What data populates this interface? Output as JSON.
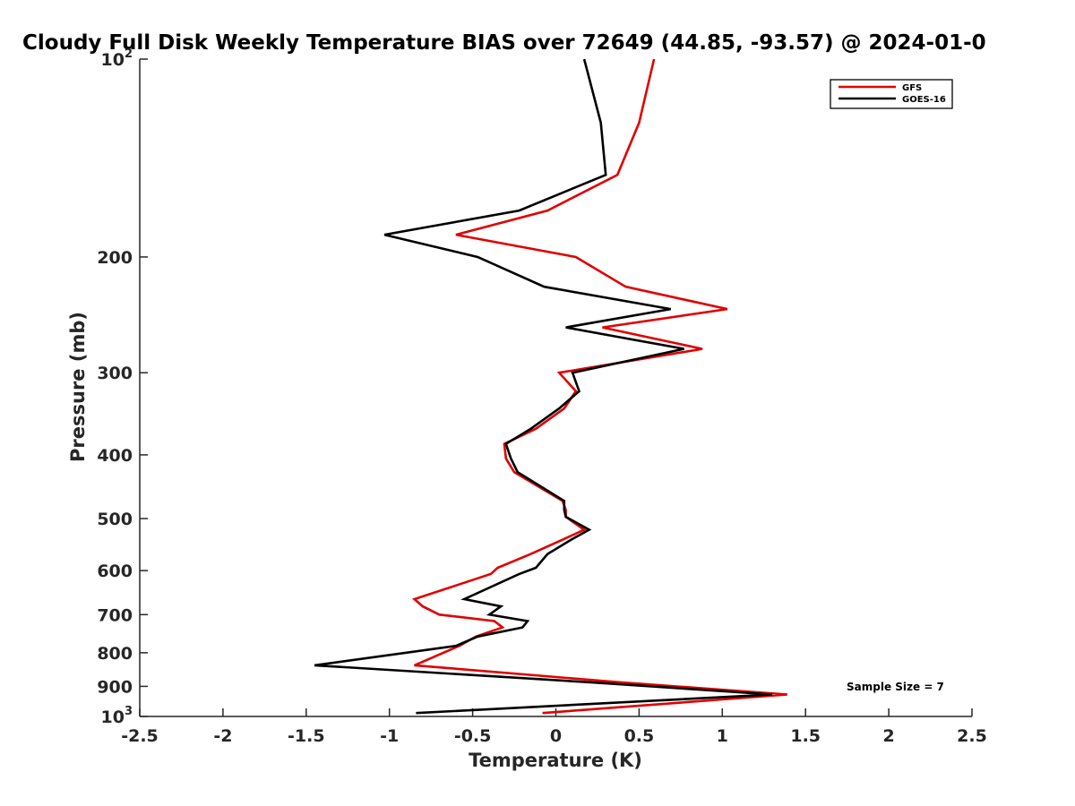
{
  "chart_data": {
    "type": "line",
    "title": "Cloudy Full Disk Weekly Temperature BIAS over 72649 (44.85, -93.57) @ 2024-01-0",
    "xlabel": "Temperature (K)",
    "ylabel": "Pressure (mb)",
    "xlim": [
      -2.5,
      2.5
    ],
    "ylim": [
      100,
      1000
    ],
    "y_scale": "log",
    "y_reversed": true,
    "x_ticks": [
      "-2.5",
      "-2",
      "-1.5",
      "-1",
      "-0.5",
      "0",
      "0.5",
      "1",
      "1.5",
      "2",
      "2.5"
    ],
    "x_tick_values": [
      -2.5,
      -2,
      -1.5,
      -1,
      -0.5,
      0,
      0.5,
      1,
      1.5,
      2,
      2.5
    ],
    "y_tick_values": [
      100,
      200,
      300,
      400,
      500,
      600,
      700,
      800,
      900,
      1000
    ],
    "y_tick_labels": [
      {
        "base": "10",
        "exp": "2"
      },
      {
        "base": "200",
        "exp": ""
      },
      {
        "base": "300",
        "exp": ""
      },
      {
        "base": "400",
        "exp": ""
      },
      {
        "base": "500",
        "exp": ""
      },
      {
        "base": "600",
        "exp": ""
      },
      {
        "base": "700",
        "exp": ""
      },
      {
        "base": "800",
        "exp": ""
      },
      {
        "base": "900",
        "exp": ""
      },
      {
        "base": "10",
        "exp": "3"
      }
    ],
    "grid": false,
    "legend_position": "top-right",
    "annotation": "Sample Size = 7",
    "series": [
      {
        "name": "GFS",
        "color": "#e00000",
        "points": [
          [
            0.59,
            100
          ],
          [
            0.5,
            125
          ],
          [
            0.37,
            150
          ],
          [
            -0.05,
            170
          ],
          [
            -0.6,
            185
          ],
          [
            0.12,
            200
          ],
          [
            0.42,
            222
          ],
          [
            1.03,
            240
          ],
          [
            0.28,
            256
          ],
          [
            0.88,
            276
          ],
          [
            0.02,
            300
          ],
          [
            0.12,
            320
          ],
          [
            0.05,
            340
          ],
          [
            -0.12,
            365
          ],
          [
            -0.31,
            385
          ],
          [
            -0.3,
            405
          ],
          [
            -0.25,
            425
          ],
          [
            0.04,
            470
          ],
          [
            0.06,
            485
          ],
          [
            0.06,
            497
          ],
          [
            0.17,
            520
          ],
          [
            0.05,
            537
          ],
          [
            -0.15,
            566
          ],
          [
            -0.35,
            594
          ],
          [
            -0.39,
            607
          ],
          [
            -0.85,
            663
          ],
          [
            -0.8,
            680
          ],
          [
            -0.7,
            700
          ],
          [
            -0.37,
            716
          ],
          [
            -0.32,
            732
          ],
          [
            -0.48,
            756
          ],
          [
            -0.58,
            781
          ],
          [
            -0.85,
            836
          ],
          [
            0.38,
            887
          ],
          [
            1.39,
            926
          ],
          [
            -0.08,
            988
          ]
        ]
      },
      {
        "name": "GOES-16",
        "color": "#000000",
        "points": [
          [
            0.17,
            100
          ],
          [
            0.27,
            125
          ],
          [
            0.3,
            150
          ],
          [
            -0.22,
            170
          ],
          [
            -1.03,
            185
          ],
          [
            -0.47,
            200
          ],
          [
            -0.07,
            222
          ],
          [
            0.69,
            240
          ],
          [
            0.06,
            256
          ],
          [
            0.77,
            276
          ],
          [
            0.1,
            300
          ],
          [
            0.14,
            320
          ],
          [
            0.02,
            340
          ],
          [
            -0.15,
            365
          ],
          [
            -0.3,
            385
          ],
          [
            -0.27,
            405
          ],
          [
            -0.23,
            425
          ],
          [
            0.05,
            470
          ],
          [
            0.05,
            485
          ],
          [
            0.06,
            497
          ],
          [
            0.2,
            520
          ],
          [
            0.1,
            537
          ],
          [
            -0.05,
            566
          ],
          [
            -0.12,
            594
          ],
          [
            -0.22,
            607
          ],
          [
            -0.55,
            663
          ],
          [
            -0.33,
            680
          ],
          [
            -0.4,
            700
          ],
          [
            -0.17,
            716
          ],
          [
            -0.2,
            732
          ],
          [
            -0.47,
            756
          ],
          [
            -0.6,
            781
          ],
          [
            -1.45,
            836
          ],
          [
            0.2,
            887
          ],
          [
            1.3,
            926
          ],
          [
            -0.84,
            988
          ]
        ]
      }
    ]
  }
}
